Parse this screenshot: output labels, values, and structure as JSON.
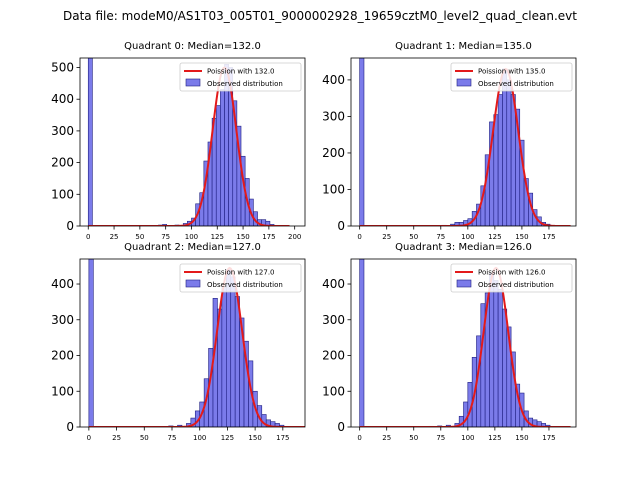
{
  "figure": {
    "suptitle": "Data file: modeM0/AS1T03_005T01_9000002928_19659cztM0_level2_quad_clean.evt"
  },
  "colors": {
    "hist_fill": "#7b7bea",
    "hist_edge": "#1e1e80",
    "fit_line": "#e31a1a"
  },
  "legend": {
    "observed_label": "Observed distribution"
  },
  "chart_data": [
    {
      "type": "bar",
      "title": "Quadrant 0: Median=132.0",
      "median": 132.0,
      "fit_label": "Poission with 132.0",
      "xlim": [
        -8,
        210
      ],
      "ylim": [
        0,
        530
      ],
      "xticks": [
        0,
        25,
        50,
        75,
        100,
        125,
        150,
        175,
        200
      ],
      "yticks": [
        0,
        100,
        200,
        300,
        400,
        500
      ],
      "bin_width": 4,
      "bins": [
        [
          0,
          530
        ],
        [
          68,
          3
        ],
        [
          72,
          5
        ],
        [
          80,
          2
        ],
        [
          84,
          3
        ],
        [
          92,
          8
        ],
        [
          96,
          15
        ],
        [
          100,
          25
        ],
        [
          104,
          70
        ],
        [
          108,
          105
        ],
        [
          112,
          205
        ],
        [
          116,
          265
        ],
        [
          120,
          340
        ],
        [
          124,
          380
        ],
        [
          128,
          430
        ],
        [
          132,
          510
        ],
        [
          136,
          500
        ],
        [
          140,
          395
        ],
        [
          144,
          315
        ],
        [
          148,
          220
        ],
        [
          152,
          150
        ],
        [
          156,
          85
        ],
        [
          160,
          45
        ],
        [
          164,
          20
        ],
        [
          168,
          20
        ],
        [
          172,
          15
        ],
        [
          176,
          5
        ],
        [
          180,
          2
        ]
      ],
      "fit_peak": 500
    },
    {
      "type": "bar",
      "title": "Quadrant 1: Median=135.0",
      "median": 135.0,
      "fit_label": "Poission with 135.0",
      "xlim": [
        -8,
        200
      ],
      "ylim": [
        0,
        460
      ],
      "xticks": [
        0,
        25,
        50,
        75,
        100,
        125,
        150,
        175
      ],
      "yticks": [
        0,
        100,
        200,
        300,
        400
      ],
      "bin_width": 4,
      "bins": [
        [
          0,
          460
        ],
        [
          76,
          2
        ],
        [
          84,
          5
        ],
        [
          88,
          10
        ],
        [
          92,
          10
        ],
        [
          96,
          15
        ],
        [
          100,
          20
        ],
        [
          104,
          40
        ],
        [
          108,
          60
        ],
        [
          112,
          110
        ],
        [
          116,
          195
        ],
        [
          120,
          285
        ],
        [
          124,
          305
        ],
        [
          128,
          360
        ],
        [
          132,
          430
        ],
        [
          136,
          400
        ],
        [
          140,
          360
        ],
        [
          144,
          320
        ],
        [
          148,
          235
        ],
        [
          152,
          130
        ],
        [
          156,
          90
        ],
        [
          160,
          45
        ],
        [
          164,
          25
        ],
        [
          168,
          10
        ],
        [
          172,
          5
        ],
        [
          176,
          2
        ]
      ],
      "fit_peak": 430
    },
    {
      "type": "bar",
      "title": "Quadrant 2: Median=127.0",
      "median": 127.0,
      "fit_label": "Poission with 127.0",
      "xlim": [
        -8,
        195
      ],
      "ylim": [
        0,
        470
      ],
      "xticks": [
        0,
        25,
        50,
        75,
        100,
        125,
        150,
        175
      ],
      "yticks": [
        0,
        100,
        200,
        300,
        400
      ],
      "bin_width": 4,
      "bins": [
        [
          0,
          470
        ],
        [
          72,
          3
        ],
        [
          80,
          5
        ],
        [
          84,
          2
        ],
        [
          88,
          10
        ],
        [
          92,
          25
        ],
        [
          96,
          45
        ],
        [
          100,
          70
        ],
        [
          104,
          135
        ],
        [
          108,
          220
        ],
        [
          112,
          360
        ],
        [
          116,
          330
        ],
        [
          120,
          390
        ],
        [
          124,
          440
        ],
        [
          128,
          420
        ],
        [
          132,
          365
        ],
        [
          136,
          305
        ],
        [
          140,
          240
        ],
        [
          144,
          185
        ],
        [
          148,
          100
        ],
        [
          152,
          60
        ],
        [
          156,
          35
        ],
        [
          160,
          20
        ],
        [
          164,
          15
        ],
        [
          168,
          10
        ],
        [
          172,
          5
        ]
      ],
      "fit_peak": 445
    },
    {
      "type": "bar",
      "title": "Quadrant 3: Median=126.0",
      "median": 126.0,
      "fit_label": "Poission with 126.0",
      "xlim": [
        -8,
        200
      ],
      "ylim": [
        0,
        470
      ],
      "xticks": [
        0,
        25,
        50,
        75,
        100,
        125,
        150,
        175
      ],
      "yticks": [
        0,
        100,
        200,
        300,
        400
      ],
      "bin_width": 4,
      "bins": [
        [
          0,
          470
        ],
        [
          64,
          2
        ],
        [
          72,
          3
        ],
        [
          80,
          5
        ],
        [
          88,
          10
        ],
        [
          92,
          30
        ],
        [
          96,
          70
        ],
        [
          100,
          125
        ],
        [
          104,
          195
        ],
        [
          108,
          255
        ],
        [
          112,
          345
        ],
        [
          116,
          375
        ],
        [
          120,
          430
        ],
        [
          124,
          410
        ],
        [
          128,
          385
        ],
        [
          132,
          330
        ],
        [
          136,
          280
        ],
        [
          140,
          210
        ],
        [
          144,
          120
        ],
        [
          148,
          95
        ],
        [
          152,
          45
        ],
        [
          156,
          25
        ],
        [
          160,
          20
        ],
        [
          164,
          15
        ],
        [
          168,
          10
        ],
        [
          172,
          5
        ]
      ],
      "fit_peak": 445
    }
  ]
}
